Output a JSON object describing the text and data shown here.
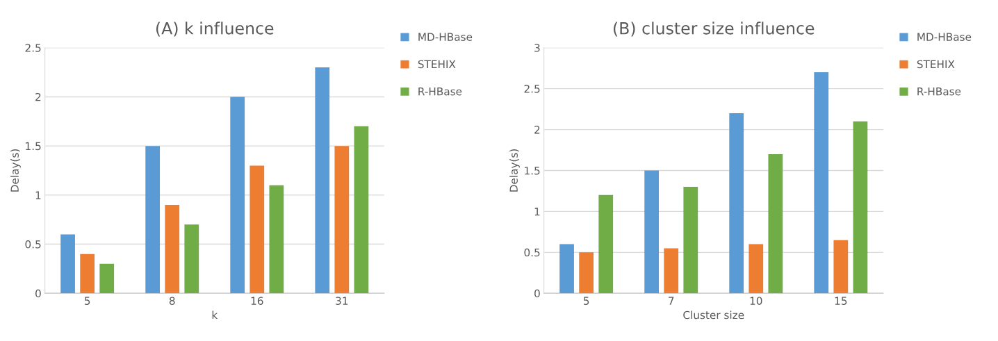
{
  "chart_data": [
    {
      "type": "bar",
      "title": "(A) k influence",
      "xlabel": "k",
      "ylabel": "Delay(s)",
      "categories": [
        "5",
        "8",
        "16",
        "31"
      ],
      "series": [
        {
          "name": "MD-HBase",
          "color": "#5b9bd5",
          "values": [
            0.6,
            1.5,
            2.0,
            2.3
          ]
        },
        {
          "name": "STEHIX",
          "color": "#ed7d31",
          "values": [
            0.4,
            0.9,
            1.3,
            1.5
          ]
        },
        {
          "name": "R-HBase",
          "color": "#70ad47",
          "values": [
            0.3,
            0.7,
            1.1,
            1.7
          ]
        }
      ],
      "ylim": [
        0,
        2.5
      ],
      "yticks": [
        0,
        0.5,
        1,
        1.5,
        2,
        2.5
      ],
      "grid": "y",
      "legend": "right"
    },
    {
      "type": "bar",
      "title": "(B) cluster size influence",
      "xlabel": "Cluster size",
      "ylabel": "Delay(s)",
      "categories": [
        "5",
        "7",
        "10",
        "15"
      ],
      "series": [
        {
          "name": "MD-HBase",
          "color": "#5b9bd5",
          "values": [
            0.6,
            1.5,
            2.2,
            2.7
          ]
        },
        {
          "name": "STEHIX",
          "color": "#ed7d31",
          "values": [
            0.5,
            0.55,
            0.6,
            0.65
          ]
        },
        {
          "name": "R-HBase",
          "color": "#70ad47",
          "values": [
            1.2,
            1.3,
            1.7,
            2.1
          ]
        }
      ],
      "ylim": [
        0,
        3
      ],
      "yticks": [
        0,
        0.5,
        1,
        1.5,
        2,
        2.5,
        3
      ],
      "grid": "y",
      "legend": "right"
    }
  ]
}
